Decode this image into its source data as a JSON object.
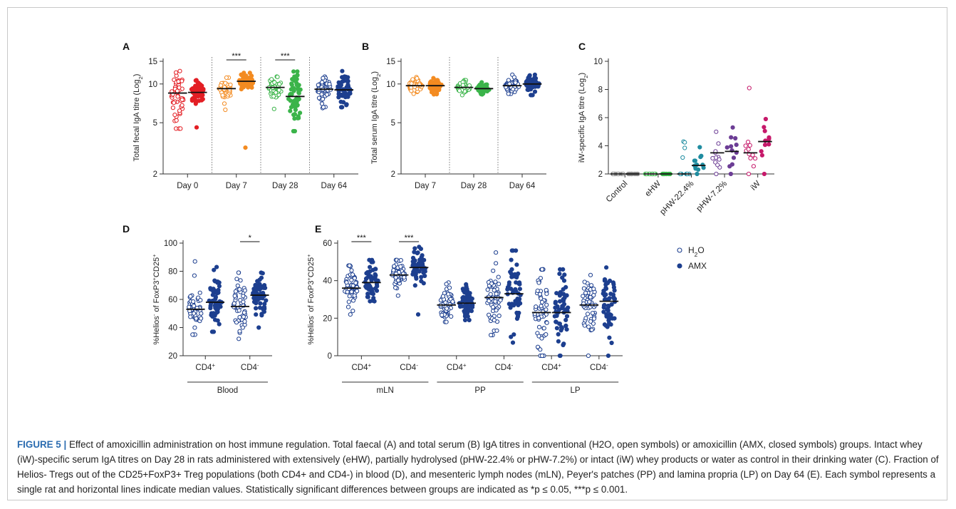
{
  "colors": {
    "red": "#e31e24",
    "orange": "#f38b21",
    "green": "#3bb44a",
    "navy": "#1d3f8f",
    "teal": "#1f8ca0",
    "purple": "#6c3d95",
    "magenta": "#c6196a",
    "grey": "#8a8a8a",
    "caption_label": "#2b6cb0"
  },
  "chart_data": [
    {
      "panel": "A",
      "type": "scatter",
      "ylabel": "Total fecal IgA titre (Log2)",
      "yscale": "log2",
      "ylim": [
        2,
        15
      ],
      "yticks": [
        2,
        5,
        10,
        15
      ],
      "categories": [
        "Day 0",
        "Day 7",
        "Day 28",
        "Day 64"
      ],
      "groups": [
        {
          "category": "Day 0",
          "series": "H2O",
          "color": "red",
          "filled": false,
          "n": 55,
          "median": 8.5,
          "min": 4.5,
          "max": 12.6
        },
        {
          "category": "Day 0",
          "series": "AMX",
          "color": "red",
          "filled": true,
          "n": 55,
          "median": 8.6,
          "min": 4.6,
          "max": 10.7
        },
        {
          "category": "Day 7",
          "series": "H2O",
          "color": "orange",
          "filled": false,
          "n": 55,
          "median": 9.2,
          "min": 6.3,
          "max": 11.2
        },
        {
          "category": "Day 7",
          "series": "AMX",
          "color": "orange",
          "filled": true,
          "n": 55,
          "median": 10.5,
          "min": 3.2,
          "max": 12.2
        },
        {
          "category": "Day 28",
          "series": "H2O",
          "color": "green",
          "filled": false,
          "n": 55,
          "median": 9.4,
          "min": 6.4,
          "max": 11.4
        },
        {
          "category": "Day 28",
          "series": "AMX",
          "color": "green",
          "filled": true,
          "n": 55,
          "median": 8.0,
          "min": 4.3,
          "max": 12.5
        },
        {
          "category": "Day 64",
          "series": "H2O",
          "color": "navy",
          "filled": false,
          "n": 55,
          "median": 9.1,
          "min": 6.5,
          "max": 11.4
        },
        {
          "category": "Day 64",
          "series": "AMX",
          "color": "navy",
          "filled": true,
          "n": 55,
          "median": 9.0,
          "min": 6.6,
          "max": 12.6
        }
      ],
      "significance": [
        {
          "category": "Day 7",
          "label": "***"
        },
        {
          "category": "Day 28",
          "label": "***"
        }
      ]
    },
    {
      "panel": "B",
      "type": "scatter",
      "ylabel": "Total serum IgA titre (Log2)",
      "yscale": "log2",
      "ylim": [
        2,
        15
      ],
      "yticks": [
        2,
        5,
        10,
        15
      ],
      "categories": [
        "Day 7",
        "Day 28",
        "Day 64"
      ],
      "groups": [
        {
          "category": "Day 7",
          "series": "H2O",
          "color": "orange",
          "filled": false,
          "n": 55,
          "median": 9.7,
          "min": 8.4,
          "max": 11.3
        },
        {
          "category": "Day 7",
          "series": "AMX",
          "color": "orange",
          "filled": true,
          "n": 55,
          "median": 9.7,
          "min": 8.3,
          "max": 11.1
        },
        {
          "category": "Day 28",
          "series": "H2O",
          "color": "green",
          "filled": false,
          "n": 55,
          "median": 9.4,
          "min": 8.2,
          "max": 10.7
        },
        {
          "category": "Day 28",
          "series": "AMX",
          "color": "green",
          "filled": true,
          "n": 55,
          "median": 9.2,
          "min": 8.3,
          "max": 10.3
        },
        {
          "category": "Day 64",
          "series": "H2O",
          "color": "navy",
          "filled": false,
          "n": 55,
          "median": 9.7,
          "min": 8.4,
          "max": 11.8
        },
        {
          "category": "Day 64",
          "series": "AMX",
          "color": "navy",
          "filled": true,
          "n": 55,
          "median": 10.0,
          "min": 8.2,
          "max": 11.8
        }
      ],
      "significance": []
    },
    {
      "panel": "C",
      "type": "scatter",
      "ylabel": "iW-specific IgA titre (Log2)",
      "yscale": "linear",
      "ylim": [
        2,
        10
      ],
      "yticks": [
        2,
        4,
        6,
        8,
        10
      ],
      "categories": [
        "Control",
        "eHW",
        "pHW-22.4%",
        "pHW-7.2%",
        "iW"
      ],
      "groups": [
        {
          "category": "Control",
          "series": "H2O",
          "color": "grey",
          "filled": false,
          "n": 12,
          "median": 2.0,
          "min": 2.0,
          "max": 2.0
        },
        {
          "category": "Control",
          "series": "AMX",
          "color": "grey",
          "filled": true,
          "n": 12,
          "median": 2.0,
          "min": 2.0,
          "max": 2.0
        },
        {
          "category": "eHW",
          "series": "H2O",
          "color": "green",
          "filled": false,
          "n": 12,
          "median": 2.0,
          "min": 2.0,
          "max": 2.0
        },
        {
          "category": "eHW",
          "series": "AMX",
          "color": "green",
          "filled": true,
          "n": 12,
          "median": 2.0,
          "min": 2.0,
          "max": 2.0
        },
        {
          "category": "pHW-22.4%",
          "series": "H2O",
          "color": "teal",
          "filled": false,
          "n": 12,
          "median": 2.0,
          "min": 2.0,
          "max": 4.3
        },
        {
          "category": "pHW-22.4%",
          "series": "AMX",
          "color": "teal",
          "filled": true,
          "n": 12,
          "median": 2.6,
          "min": 2.0,
          "max": 3.9
        },
        {
          "category": "pHW-7.2%",
          "series": "H2O",
          "color": "purple",
          "filled": false,
          "n": 12,
          "median": 3.5,
          "min": 2.0,
          "max": 5.0
        },
        {
          "category": "pHW-7.2%",
          "series": "AMX",
          "color": "purple",
          "filled": true,
          "n": 12,
          "median": 3.6,
          "min": 2.0,
          "max": 5.3
        },
        {
          "category": "iW",
          "series": "H2O",
          "color": "magenta",
          "filled": false,
          "n": 12,
          "median": 3.5,
          "min": 2.0,
          "max": 8.1
        },
        {
          "category": "iW",
          "series": "AMX",
          "color": "magenta",
          "filled": true,
          "n": 12,
          "median": 4.3,
          "min": 2.0,
          "max": 5.9
        }
      ],
      "significance": []
    },
    {
      "panel": "D",
      "type": "scatter",
      "ylabel": "%Helios- of FoxP3+CD25+",
      "yscale": "linear",
      "ylim": [
        20,
        100
      ],
      "yticks": [
        20,
        40,
        60,
        80,
        100
      ],
      "categories": [
        "CD4+",
        "CD4-"
      ],
      "category_groups": [
        {
          "label": "Blood",
          "span": [
            0,
            1
          ]
        }
      ],
      "groups": [
        {
          "category": "CD4+",
          "series": "H2O",
          "color": "navy",
          "filled": false,
          "n": 55,
          "median": 53,
          "min": 35,
          "max": 87
        },
        {
          "category": "CD4+",
          "series": "AMX",
          "color": "navy",
          "filled": true,
          "n": 55,
          "median": 58,
          "min": 37,
          "max": 83
        },
        {
          "category": "CD4-",
          "series": "H2O",
          "color": "navy",
          "filled": false,
          "n": 55,
          "median": 55,
          "min": 32,
          "max": 79
        },
        {
          "category": "CD4-",
          "series": "AMX",
          "color": "navy",
          "filled": true,
          "n": 55,
          "median": 63,
          "min": 40,
          "max": 79
        }
      ],
      "significance": [
        {
          "category": "CD4-",
          "label": "*"
        }
      ]
    },
    {
      "panel": "E",
      "type": "scatter",
      "ylabel": "%Helios- of FoxP3+CD25+",
      "yscale": "linear",
      "ylim": [
        0,
        60
      ],
      "yticks": [
        0,
        20,
        40,
        60
      ],
      "categories": [
        "mLN CD4+",
        "mLN CD4-",
        "PP CD4+",
        "PP CD4-",
        "LP CD4+",
        "LP CD4-"
      ],
      "category_groups": [
        {
          "label": "mLN",
          "span": [
            0,
            1
          ]
        },
        {
          "label": "PP",
          "span": [
            2,
            3
          ]
        },
        {
          "label": "LP",
          "span": [
            4,
            5
          ]
        }
      ],
      "groups": [
        {
          "category": "mLN CD4+",
          "series": "H2O",
          "color": "navy",
          "filled": false,
          "n": 55,
          "median": 36,
          "min": 22,
          "max": 48
        },
        {
          "category": "mLN CD4+",
          "series": "AMX",
          "color": "navy",
          "filled": true,
          "n": 55,
          "median": 39,
          "min": 29,
          "max": 51
        },
        {
          "category": "mLN CD4-",
          "series": "H2O",
          "color": "navy",
          "filled": false,
          "n": 55,
          "median": 43,
          "min": 32,
          "max": 51
        },
        {
          "category": "mLN CD4-",
          "series": "AMX",
          "color": "navy",
          "filled": true,
          "n": 55,
          "median": 47,
          "min": 22,
          "max": 58
        },
        {
          "category": "PP CD4+",
          "series": "H2O",
          "color": "navy",
          "filled": false,
          "n": 55,
          "median": 27,
          "min": 18,
          "max": 39
        },
        {
          "category": "PP CD4+",
          "series": "AMX",
          "color": "navy",
          "filled": true,
          "n": 55,
          "median": 28,
          "min": 19,
          "max": 38
        },
        {
          "category": "PP CD4-",
          "series": "H2O",
          "color": "navy",
          "filled": false,
          "n": 55,
          "median": 31,
          "min": 11,
          "max": 55
        },
        {
          "category": "PP CD4-",
          "series": "AMX",
          "color": "navy",
          "filled": true,
          "n": 55,
          "median": 33,
          "min": 7,
          "max": 56
        },
        {
          "category": "LP CD4+",
          "series": "H2O",
          "color": "navy",
          "filled": false,
          "n": 55,
          "median": 23,
          "min": 0,
          "max": 46
        },
        {
          "category": "LP CD4+",
          "series": "AMX",
          "color": "navy",
          "filled": true,
          "n": 55,
          "median": 23,
          "min": 0,
          "max": 46
        },
        {
          "category": "LP CD4-",
          "series": "H2O",
          "color": "navy",
          "filled": false,
          "n": 55,
          "median": 27,
          "min": 0,
          "max": 43
        },
        {
          "category": "LP CD4-",
          "series": "AMX",
          "color": "navy",
          "filled": true,
          "n": 55,
          "median": 29,
          "min": 0,
          "max": 47
        }
      ],
      "significance": [
        {
          "category": "mLN CD4+",
          "label": "***"
        },
        {
          "category": "mLN CD4-",
          "label": "***"
        }
      ]
    }
  ],
  "legend": {
    "h2o": "H2O",
    "amx": "AMX"
  },
  "caption": {
    "label": "FIGURE 5",
    "separator": " | ",
    "text": "Effect of amoxicillin administration on host immune regulation. Total faecal (A) and total serum (B) IgA titres in conventional (H2O, open symbols) or amoxicillin (AMX, closed symbols) groups. Intact whey (iW)-specific serum IgA titres on Day 28 in rats administered with extensively (eHW), partially hydrolysed (pHW-22.4% or pHW-7.2%) or intact (iW) whey products or water as control in their drinking water (C). Fraction of Helios- Tregs out of the CD25+FoxP3+ Treg populations (both CD4+ and CD4-) in blood (D), and mesenteric lymph nodes (mLN), Peyer's patches (PP) and lamina propria (LP) on Day 64 (E). Each symbol represents a single rat and horizontal lines indicate median values. Statistically significant differences between groups are indicated as *p ≤ 0.05, ***p ≤ 0.001."
  }
}
